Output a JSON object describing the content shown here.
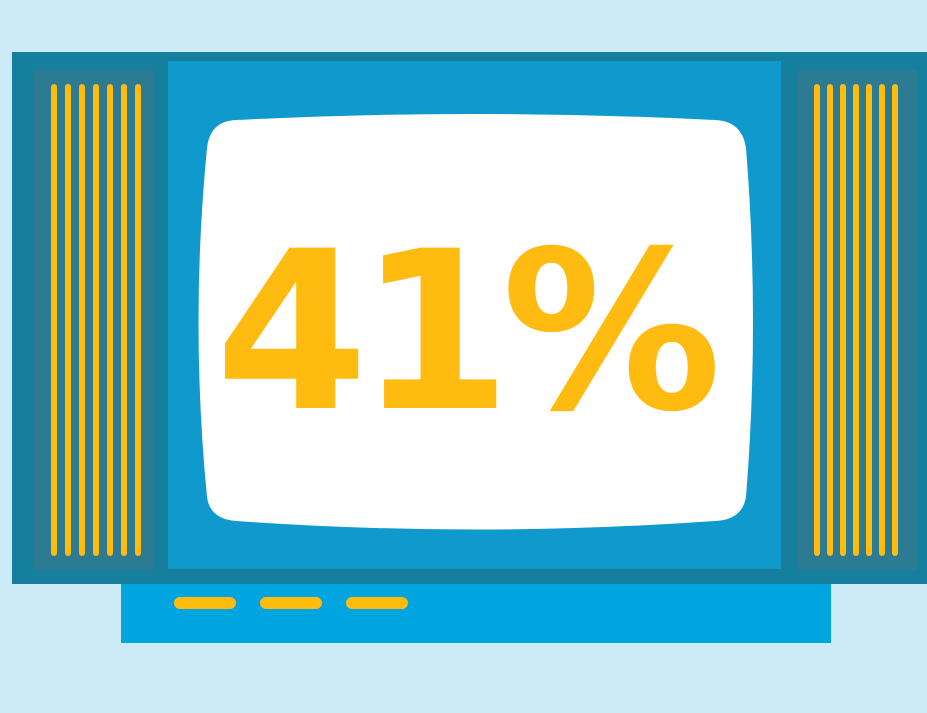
{
  "screen": {
    "percentage": "41%"
  },
  "colors": {
    "background": "#cdebf6",
    "tv_body": "#157f9d",
    "speaker_panel": "#2d7a93",
    "screen_frame": "#0f99cd",
    "screen": "#ffffff",
    "accent": "#ffbc0d",
    "base": "#00a4df"
  }
}
